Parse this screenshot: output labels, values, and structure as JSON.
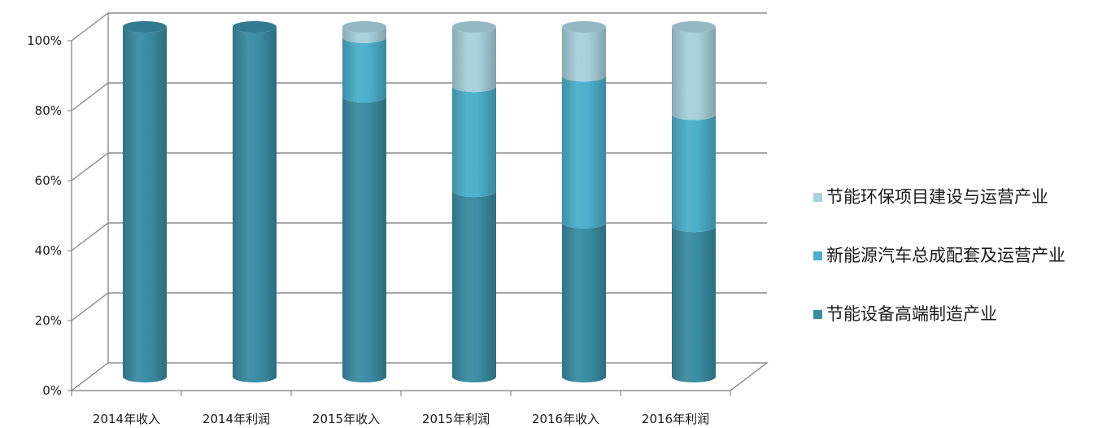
{
  "chart_data": {
    "type": "bar",
    "stacked": true,
    "percent": true,
    "style": "3d-cylinder",
    "categories": [
      "2014年收入",
      "2014年利润",
      "2015年收入",
      "2015年利润",
      "2016年收入",
      "2016年利润"
    ],
    "series": [
      {
        "name": "节能设备高端制造产业",
        "color": "#3a8ca3",
        "values": [
          100,
          100,
          80,
          53,
          44,
          43
        ]
      },
      {
        "name": "新能源汽车总成配套及运营产业",
        "color": "#4bafcb",
        "values": [
          0,
          0,
          17,
          30,
          42,
          32
        ]
      },
      {
        "name": "节能环保项目建设与运营产业",
        "color": "#a7d1dc",
        "values": [
          0,
          0,
          3,
          17,
          14,
          25
        ]
      }
    ],
    "y_ticks": [
      "0%",
      "20%",
      "40%",
      "60%",
      "80%",
      "100%"
    ],
    "ylim": [
      0,
      100
    ],
    "grid": true,
    "legend_position": "right"
  }
}
